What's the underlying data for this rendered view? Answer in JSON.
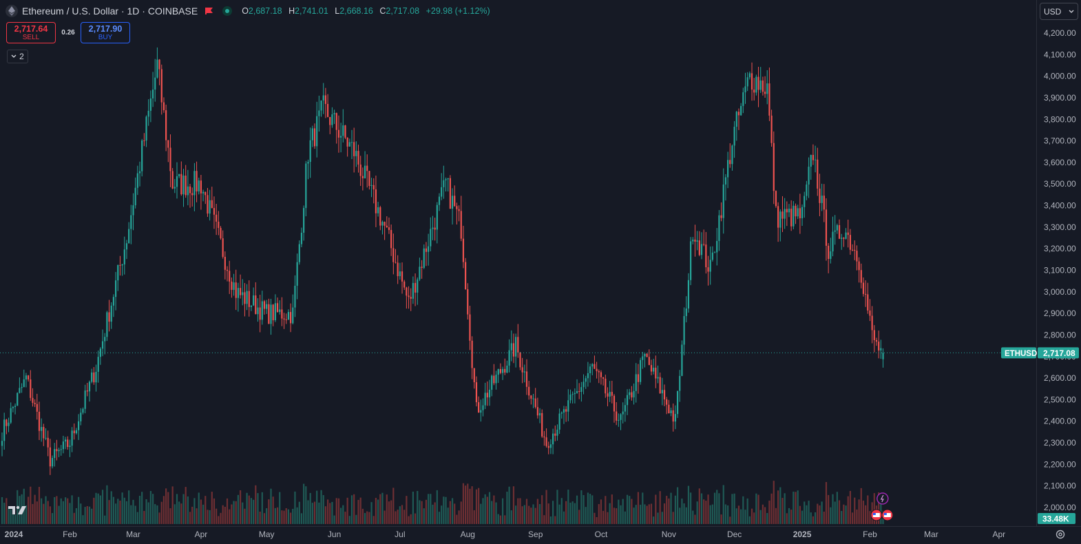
{
  "header": {
    "title": "Ethereum / U.S. Dollar · 1D · COINBASE",
    "open_label": "O",
    "open": "2,687.18",
    "high_label": "H",
    "high": "2,741.01",
    "low_label": "L",
    "low": "2,668.16",
    "close_label": "C",
    "close": "2,717.08",
    "change": "+29.98 (+1.12%)",
    "flag_icon": "flag-icon",
    "status_icon": "market-open-icon"
  },
  "trade": {
    "sell_price": "2,717.64",
    "sell_label": "SELL",
    "spread": "0.26",
    "buy_price": "2,717.90",
    "buy_label": "BUY"
  },
  "indicators_toggle": {
    "count": "2"
  },
  "currency": {
    "selected": "USD"
  },
  "colors": {
    "up": "#26a69a",
    "down": "#ef5350",
    "background": "#161a25",
    "up_volume": "#1f5a55",
    "down_volume": "#6e2f33"
  },
  "chart_data": {
    "type": "candlestick",
    "symbol": "ETHUSD",
    "y_ticks": [
      "4,200.00",
      "4,100.00",
      "4,000.00",
      "3,900.00",
      "3,800.00",
      "3,700.00",
      "3,600.00",
      "3,500.00",
      "3,400.00",
      "3,300.00",
      "3,200.00",
      "3,100.00",
      "3,000.00",
      "2,900.00",
      "2,800.00",
      "2,700.00",
      "2,600.00",
      "2,500.00",
      "2,400.00",
      "2,300.00",
      "2,200.00",
      "2,100.00",
      "2,000.00"
    ],
    "ylim": [
      1940,
      4260
    ],
    "x_ticks": [
      {
        "label": "2024",
        "date": "2024-01-01"
      },
      {
        "label": "Feb",
        "date": "2024-02-01"
      },
      {
        "label": "Mar",
        "date": "2024-03-01"
      },
      {
        "label": "Apr",
        "date": "2024-04-01"
      },
      {
        "label": "May",
        "date": "2024-05-01"
      },
      {
        "label": "Jun",
        "date": "2024-06-01"
      },
      {
        "label": "Jul",
        "date": "2024-07-01"
      },
      {
        "label": "Aug",
        "date": "2024-08-01"
      },
      {
        "label": "Sep",
        "date": "2024-09-01"
      },
      {
        "label": "Oct",
        "date": "2024-10-01"
      },
      {
        "label": "Nov",
        "date": "2024-11-01"
      },
      {
        "label": "Dec",
        "date": "2024-12-01"
      },
      {
        "label": "2025",
        "date": "2025-01-01"
      },
      {
        "label": "Feb",
        "date": "2025-02-01"
      },
      {
        "label": "Mar",
        "date": "2025-03-01"
      },
      {
        "label": "Apr",
        "date": "2025-04-01"
      }
    ],
    "last_price": 2717.08,
    "last_price_label": "2,717.08",
    "last_volume_label": "33.48K",
    "key_closes": [
      {
        "date": "2024-01-01",
        "close": 2350
      },
      {
        "date": "2024-01-12",
        "close": 2600
      },
      {
        "date": "2024-01-23",
        "close": 2220
      },
      {
        "date": "2024-02-01",
        "close": 2300
      },
      {
        "date": "2024-02-13",
        "close": 2650
      },
      {
        "date": "2024-02-27",
        "close": 3250
      },
      {
        "date": "2024-03-12",
        "close": 4050
      },
      {
        "date": "2024-03-19",
        "close": 3500
      },
      {
        "date": "2024-04-01",
        "close": 3500
      },
      {
        "date": "2024-04-17",
        "close": 3000
      },
      {
        "date": "2024-05-01",
        "close": 2900
      },
      {
        "date": "2024-05-13",
        "close": 2900
      },
      {
        "date": "2024-05-20",
        "close": 3650
      },
      {
        "date": "2024-05-27",
        "close": 3850
      },
      {
        "date": "2024-06-10",
        "close": 3650
      },
      {
        "date": "2024-06-24",
        "close": 3300
      },
      {
        "date": "2024-07-05",
        "close": 2950
      },
      {
        "date": "2024-07-22",
        "close": 3500
      },
      {
        "date": "2024-07-29",
        "close": 3300
      },
      {
        "date": "2024-08-05",
        "close": 2450
      },
      {
        "date": "2024-08-23",
        "close": 2750
      },
      {
        "date": "2024-09-06",
        "close": 2300
      },
      {
        "date": "2024-09-27",
        "close": 2650
      },
      {
        "date": "2024-10-10",
        "close": 2400
      },
      {
        "date": "2024-10-21",
        "close": 2700
      },
      {
        "date": "2024-11-04",
        "close": 2400
      },
      {
        "date": "2024-11-12",
        "close": 3300
      },
      {
        "date": "2024-11-20",
        "close": 3100
      },
      {
        "date": "2024-11-30",
        "close": 3700
      },
      {
        "date": "2024-12-08",
        "close": 4000
      },
      {
        "date": "2024-12-16",
        "close": 3950
      },
      {
        "date": "2024-12-20",
        "close": 3350
      },
      {
        "date": "2025-01-01",
        "close": 3350
      },
      {
        "date": "2025-01-06",
        "close": 3650
      },
      {
        "date": "2025-01-13",
        "close": 3200
      },
      {
        "date": "2025-01-20",
        "close": 3300
      },
      {
        "date": "2025-01-27",
        "close": 3150
      },
      {
        "date": "2025-02-02",
        "close": 2800
      },
      {
        "date": "2025-02-04",
        "close": 2750
      },
      {
        "date": "2025-02-07",
        "close": 2717.08
      }
    ],
    "event_markers": [
      {
        "date": "2025-02-03",
        "icons": [
          "earnings-flag-icon",
          "news-flag-icon"
        ]
      }
    ]
  }
}
